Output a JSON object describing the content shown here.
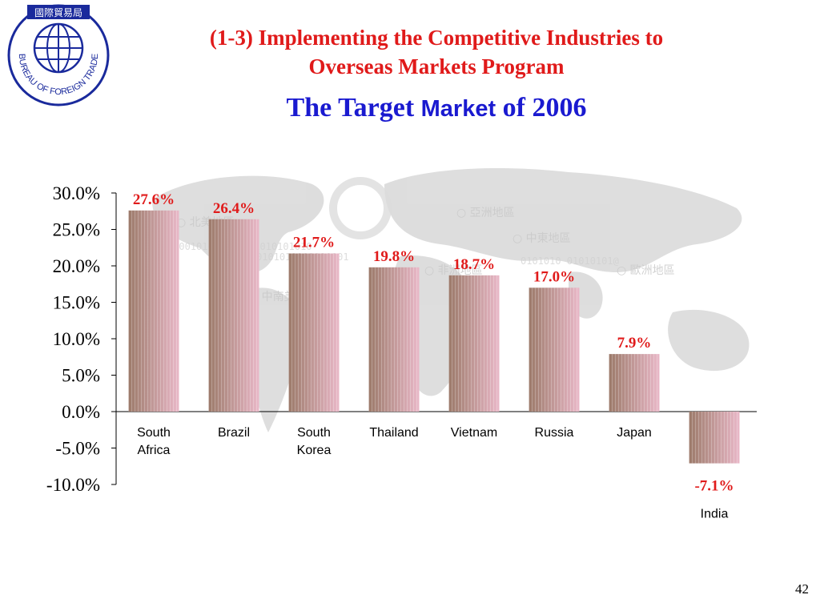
{
  "header": {
    "logo_text": "BUREAU OF FOREIGN TRADE",
    "logo_top_text": "國際貿易局",
    "title_line1": "(1-3)  Implementing  the Competitive Industries to",
    "title_line2": "Overseas Markets  Program",
    "subtitle_part1": "The Target ",
    "subtitle_part2": "Market",
    "subtitle_part3": " of 2006",
    "title_color": "#e01a1a",
    "subtitle_color": "#1a1ad0"
  },
  "chart_data": {
    "type": "bar",
    "title": "The Target Market of 2006",
    "xlabel": "",
    "ylabel": "",
    "ylim": [
      -10,
      30
    ],
    "yticks": [
      "30.0%",
      "25.0%",
      "20.0%",
      "15.0%",
      "10.0%",
      "5.0%",
      "0.0%",
      "-5.0%",
      "-10.0%"
    ],
    "ytick_values": [
      30,
      25,
      20,
      15,
      10,
      5,
      0,
      -5,
      -10
    ],
    "categories": [
      [
        "South",
        "Africa"
      ],
      [
        "Brazil"
      ],
      [
        "South",
        "Korea"
      ],
      [
        "Thailand"
      ],
      [
        "Vietnam"
      ],
      [
        "Russia"
      ],
      [
        "Japan"
      ],
      [
        "India"
      ]
    ],
    "values": [
      27.6,
      26.4,
      21.7,
      19.8,
      18.7,
      17.0,
      7.9,
      -7.1
    ],
    "data_labels": [
      "27.6%",
      "26.4%",
      "21.7%",
      "19.8%",
      "18.7%",
      "17.0%",
      "7.9%",
      "-7.1%"
    ],
    "grid": false,
    "legend": "none",
    "label_color": "#e01a1a",
    "bar_colors": [
      "#9c7a6a",
      "#e9b8c8"
    ]
  },
  "footer": {
    "page_number": "42"
  }
}
